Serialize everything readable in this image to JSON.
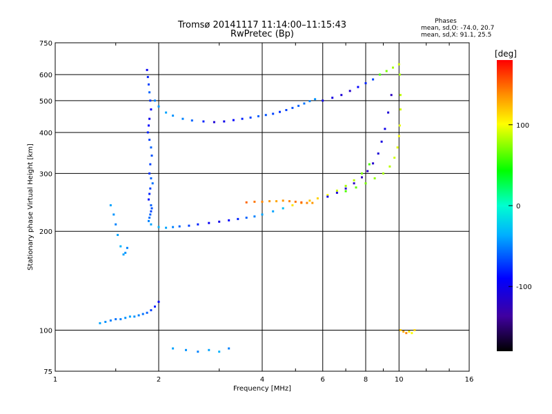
{
  "chart_data": {
    "type": "scatter",
    "title": "Tromsø 20141117 11:14:00–11:15:43",
    "subtitle": "RwPretec (Bp)",
    "phases_block": {
      "heading": "Phases",
      "line1": "mean, sd,O: -74.0, 20.7",
      "line2": "mean, sd,X:  91.1, 25.5"
    },
    "xlabel": "Frequency [MHz]",
    "ylabel": "Stationary phase Virtual Height [km]",
    "x_scale": "log",
    "y_scale": "log",
    "xlim": [
      1,
      16
    ],
    "ylim": [
      75,
      750
    ],
    "x_ticks": [
      1,
      2,
      4,
      6,
      8,
      10,
      16
    ],
    "y_ticks": [
      75,
      100,
      200,
      300,
      400,
      500,
      600,
      750
    ],
    "grid": true,
    "colorbar": {
      "label": "[deg]",
      "range": [
        -180,
        180
      ],
      "ticks": [
        100,
        0,
        -100
      ]
    },
    "series": [
      {
        "x": [
          1.85,
          1.86,
          1.87,
          1.88,
          1.89,
          1.9,
          1.88,
          1.87,
          1.86,
          1.88,
          1.9,
          1.91,
          1.89,
          1.88,
          1.9,
          1.92,
          1.89,
          1.88,
          1.87,
          1.9,
          1.91,
          1.9,
          1.89,
          1.88,
          1.87
        ],
        "y": [
          620,
          590,
          560,
          530,
          500,
          470,
          440,
          420,
          400,
          380,
          360,
          340,
          320,
          300,
          290,
          280,
          270,
          260,
          250,
          240,
          235,
          230,
          225,
          220,
          215
        ],
        "phase": [
          -95,
          -80,
          -70,
          -60,
          -75,
          -90,
          -100,
          -90,
          -80,
          -70,
          -60,
          -65,
          -70,
          -75,
          -60,
          -55,
          -70,
          -80,
          -85,
          -60,
          -65,
          -70,
          -60,
          -55,
          -50
        ]
      },
      {
        "x": [
          1.95,
          2.0,
          2.1,
          2.2,
          2.35,
          2.5,
          2.7,
          2.9,
          3.1,
          3.3,
          3.5,
          3.7,
          3.9,
          4.1,
          4.3,
          4.5,
          4.7,
          4.9,
          5.1,
          5.3,
          5.5,
          5.7
        ],
        "y": [
          500,
          480,
          460,
          450,
          440,
          435,
          432,
          430,
          432,
          436,
          440,
          444,
          448,
          452,
          456,
          462,
          468,
          475,
          482,
          490,
          498,
          505
        ],
        "phase": [
          -50,
          -45,
          -40,
          -45,
          -50,
          -60,
          -80,
          -110,
          -100,
          -90,
          -80,
          -70,
          -60,
          -65,
          -70,
          -75,
          -70,
          -65,
          -60,
          -55,
          -50,
          -45
        ]
      },
      {
        "x": [
          1.9,
          2.0,
          2.1,
          2.2,
          2.3,
          2.45,
          2.6,
          2.8,
          3.0,
          3.2,
          3.4,
          3.6,
          3.8,
          4.0,
          4.3,
          4.6,
          4.9,
          5.2,
          5.5,
          5.8,
          6.2,
          6.6,
          7.0,
          7.4,
          7.8,
          8.2
        ],
        "y": [
          210,
          206,
          205,
          206,
          207,
          208,
          210,
          212,
          214,
          216,
          218,
          220,
          222,
          225,
          230,
          235,
          240,
          244,
          248,
          252,
          258,
          266,
          275,
          286,
          300,
          320
        ],
        "phase": [
          -40,
          -35,
          -40,
          -50,
          -60,
          -70,
          -80,
          -95,
          -100,
          -90,
          -80,
          -60,
          -50,
          -40,
          -40,
          -30,
          110,
          125,
          120,
          115,
          100,
          90,
          80,
          85,
          70,
          60
        ]
      },
      {
        "x": [
          3.6,
          3.8,
          4.0,
          4.2,
          4.4,
          4.6,
          4.8,
          5.0,
          5.2,
          5.4,
          5.6
        ],
        "y": [
          245,
          246,
          246,
          247,
          247,
          248,
          247,
          246,
          245,
          244,
          244
        ],
        "phase": [
          150,
          145,
          140,
          135,
          130,
          135,
          140,
          145,
          150,
          140,
          135
        ]
      },
      {
        "x": [
          6.2,
          6.6,
          7.0,
          7.4,
          7.8,
          8.1,
          8.4,
          8.7,
          8.9,
          9.1,
          9.3,
          9.5
        ],
        "y": [
          255,
          262,
          270,
          280,
          292,
          305,
          322,
          345,
          375,
          410,
          460,
          520
        ],
        "phase": [
          -100,
          -110,
          -115,
          -120,
          -125,
          -120,
          -115,
          -110,
          -105,
          -100,
          -110,
          -120
        ]
      },
      {
        "x": [
          7.0,
          7.5,
          8.0,
          8.5,
          9.0,
          9.4,
          9.7,
          9.9,
          10.0,
          10.05,
          10.1,
          10.1,
          10.05
        ],
        "y": [
          265,
          272,
          280,
          290,
          300,
          315,
          335,
          360,
          390,
          420,
          470,
          520,
          600
        ],
        "phase": [
          60,
          65,
          70,
          75,
          80,
          85,
          90,
          95,
          100,
          95,
          90,
          85,
          80
        ]
      },
      {
        "x": [
          6.0,
          6.4,
          6.8,
          7.2,
          7.6,
          8.0,
          8.4,
          8.8,
          9.2,
          9.6,
          10.0
        ],
        "y": [
          500,
          510,
          520,
          535,
          550,
          565,
          580,
          600,
          615,
          630,
          645
        ],
        "phase": [
          -100,
          -105,
          -110,
          -115,
          -90,
          -80,
          -70,
          60,
          70,
          80,
          90
        ]
      },
      {
        "x": [
          1.35,
          1.4,
          1.45,
          1.5,
          1.55,
          1.6,
          1.65,
          1.7,
          1.75,
          1.8,
          1.85,
          1.9,
          1.95,
          2.0
        ],
        "y": [
          105,
          106,
          107,
          108,
          108,
          109,
          110,
          110,
          111,
          112,
          113,
          115,
          118,
          122
        ],
        "phase": [
          -40,
          -45,
          -50,
          -55,
          -50,
          -45,
          -40,
          -45,
          -50,
          -55,
          -60,
          -70,
          -80,
          -90
        ]
      },
      {
        "x": [
          1.45,
          1.48,
          1.5,
          1.52,
          1.55,
          1.58,
          1.6,
          1.62
        ],
        "y": [
          240,
          225,
          210,
          195,
          180,
          170,
          172,
          178
        ],
        "phase": [
          -40,
          -45,
          -50,
          -40,
          -35,
          -40,
          -45,
          -50
        ]
      },
      {
        "x": [
          10.1,
          10.3,
          10.5,
          10.7,
          10.9,
          11.1
        ],
        "y": [
          100,
          99,
          98,
          99,
          98,
          100
        ],
        "phase": [
          120,
          130,
          140,
          110,
          100,
          115
        ]
      },
      {
        "x": [
          2.2,
          2.4,
          2.6,
          2.8,
          3.0,
          3.2
        ],
        "y": [
          88,
          87,
          86,
          87,
          86,
          88
        ],
        "phase": [
          -40,
          -45,
          -50,
          -40,
          -35,
          -50
        ]
      }
    ]
  }
}
